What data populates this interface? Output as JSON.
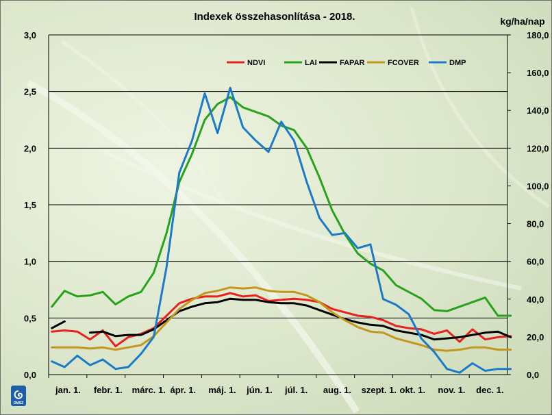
{
  "chart_data": {
    "type": "line",
    "title": "Indexek összehasonlítása - 2018.",
    "y2label": "kg/ha/nap",
    "ylim": [
      0,
      3
    ],
    "y2lim": [
      0,
      180
    ],
    "yticks": [
      "0,0",
      "0,5",
      "1,0",
      "1,5",
      "2,0",
      "2,5",
      "3,0"
    ],
    "y2ticks": [
      "0,0",
      "20,0",
      "40,0",
      "60,0",
      "80,0",
      "100,0",
      "120,0",
      "140,0",
      "160,0",
      "180,0"
    ],
    "x_ticks": [
      {
        "label": "jan. 1.",
        "x": 0
      },
      {
        "label": "febr. 1.",
        "x": 3
      },
      {
        "label": "márc. 1.",
        "x": 6
      },
      {
        "label": "ápr. 1.",
        "x": 9
      },
      {
        "label": "máj. 1.",
        "x": 12
      },
      {
        "label": "jún. 1.",
        "x": 15
      },
      {
        "label": "júl. 1.",
        "x": 18
      },
      {
        "label": "aug. 1.",
        "x": 21
      },
      {
        "label": "szept. 1.",
        "x": 24
      },
      {
        "label": "okt. 1.",
        "x": 27
      },
      {
        "label": "nov. 1.",
        "x": 30
      },
      {
        "label": "dec. 1.",
        "x": 33
      }
    ],
    "xlim": [
      0,
      36
    ],
    "grid": "horizontal",
    "legend": "top-right",
    "series": [
      {
        "name": "NDVI",
        "color": "#e8211d",
        "axis": "left",
        "values": [
          0.38,
          0.39,
          0.38,
          0.31,
          0.39,
          0.25,
          0.33,
          0.36,
          0.41,
          0.52,
          0.63,
          0.67,
          0.69,
          0.69,
          0.72,
          0.69,
          0.7,
          0.65,
          0.66,
          0.67,
          0.66,
          0.64,
          0.58,
          0.55,
          0.52,
          0.51,
          0.48,
          0.43,
          0.41,
          0.4,
          0.36,
          0.39,
          0.29,
          0.4,
          0.31,
          0.33,
          0.34
        ]
      },
      {
        "name": "LAI",
        "color": "#27a21a",
        "axis": "left",
        "values": [
          0.6,
          0.74,
          0.69,
          0.7,
          0.73,
          0.62,
          0.69,
          0.73,
          0.9,
          1.25,
          1.7,
          1.95,
          2.25,
          2.39,
          2.45,
          2.36,
          2.32,
          2.28,
          2.2,
          2.16,
          2.0,
          1.74,
          1.45,
          1.24,
          1.07,
          0.98,
          0.92,
          0.79,
          0.73,
          0.67,
          0.57,
          0.56,
          0.6,
          0.64,
          0.68,
          0.52,
          0.52
        ]
      },
      {
        "name": "FAPAR",
        "color": "#000000",
        "axis": "left",
        "values": [
          0.41,
          0.47,
          null,
          0.37,
          0.38,
          0.34,
          0.35,
          0.35,
          0.4,
          0.48,
          0.56,
          0.6,
          0.63,
          0.64,
          0.67,
          0.66,
          0.66,
          0.64,
          0.63,
          0.63,
          0.61,
          0.57,
          0.53,
          0.49,
          0.46,
          0.44,
          0.43,
          0.39,
          0.37,
          0.35,
          0.31,
          0.32,
          0.33,
          0.35,
          0.37,
          0.38,
          0.33
        ]
      },
      {
        "name": "FCOVER",
        "color": "#c3961e",
        "axis": "left",
        "values": [
          0.24,
          0.24,
          0.24,
          0.23,
          0.24,
          0.22,
          0.24,
          0.26,
          0.34,
          0.46,
          0.58,
          0.66,
          0.72,
          0.74,
          0.77,
          0.76,
          0.77,
          0.74,
          0.73,
          0.73,
          0.7,
          0.64,
          0.55,
          0.48,
          0.42,
          0.38,
          0.37,
          0.32,
          0.29,
          0.26,
          0.22,
          0.21,
          0.22,
          0.24,
          0.24,
          0.22,
          0.22
        ]
      },
      {
        "name": "DMP",
        "color": "#1a7ac8",
        "axis": "right",
        "values": [
          7,
          4,
          10,
          5,
          8,
          3,
          4,
          11,
          20,
          57,
          107,
          124,
          149,
          128,
          152,
          131,
          124,
          118,
          134,
          124,
          102,
          83,
          74,
          75,
          67,
          69,
          40,
          37,
          32,
          19,
          12,
          3,
          1,
          6,
          2,
          3,
          3
        ]
      }
    ]
  },
  "logo": {
    "text": "OMSZ",
    "color": "#1f5fa8"
  }
}
